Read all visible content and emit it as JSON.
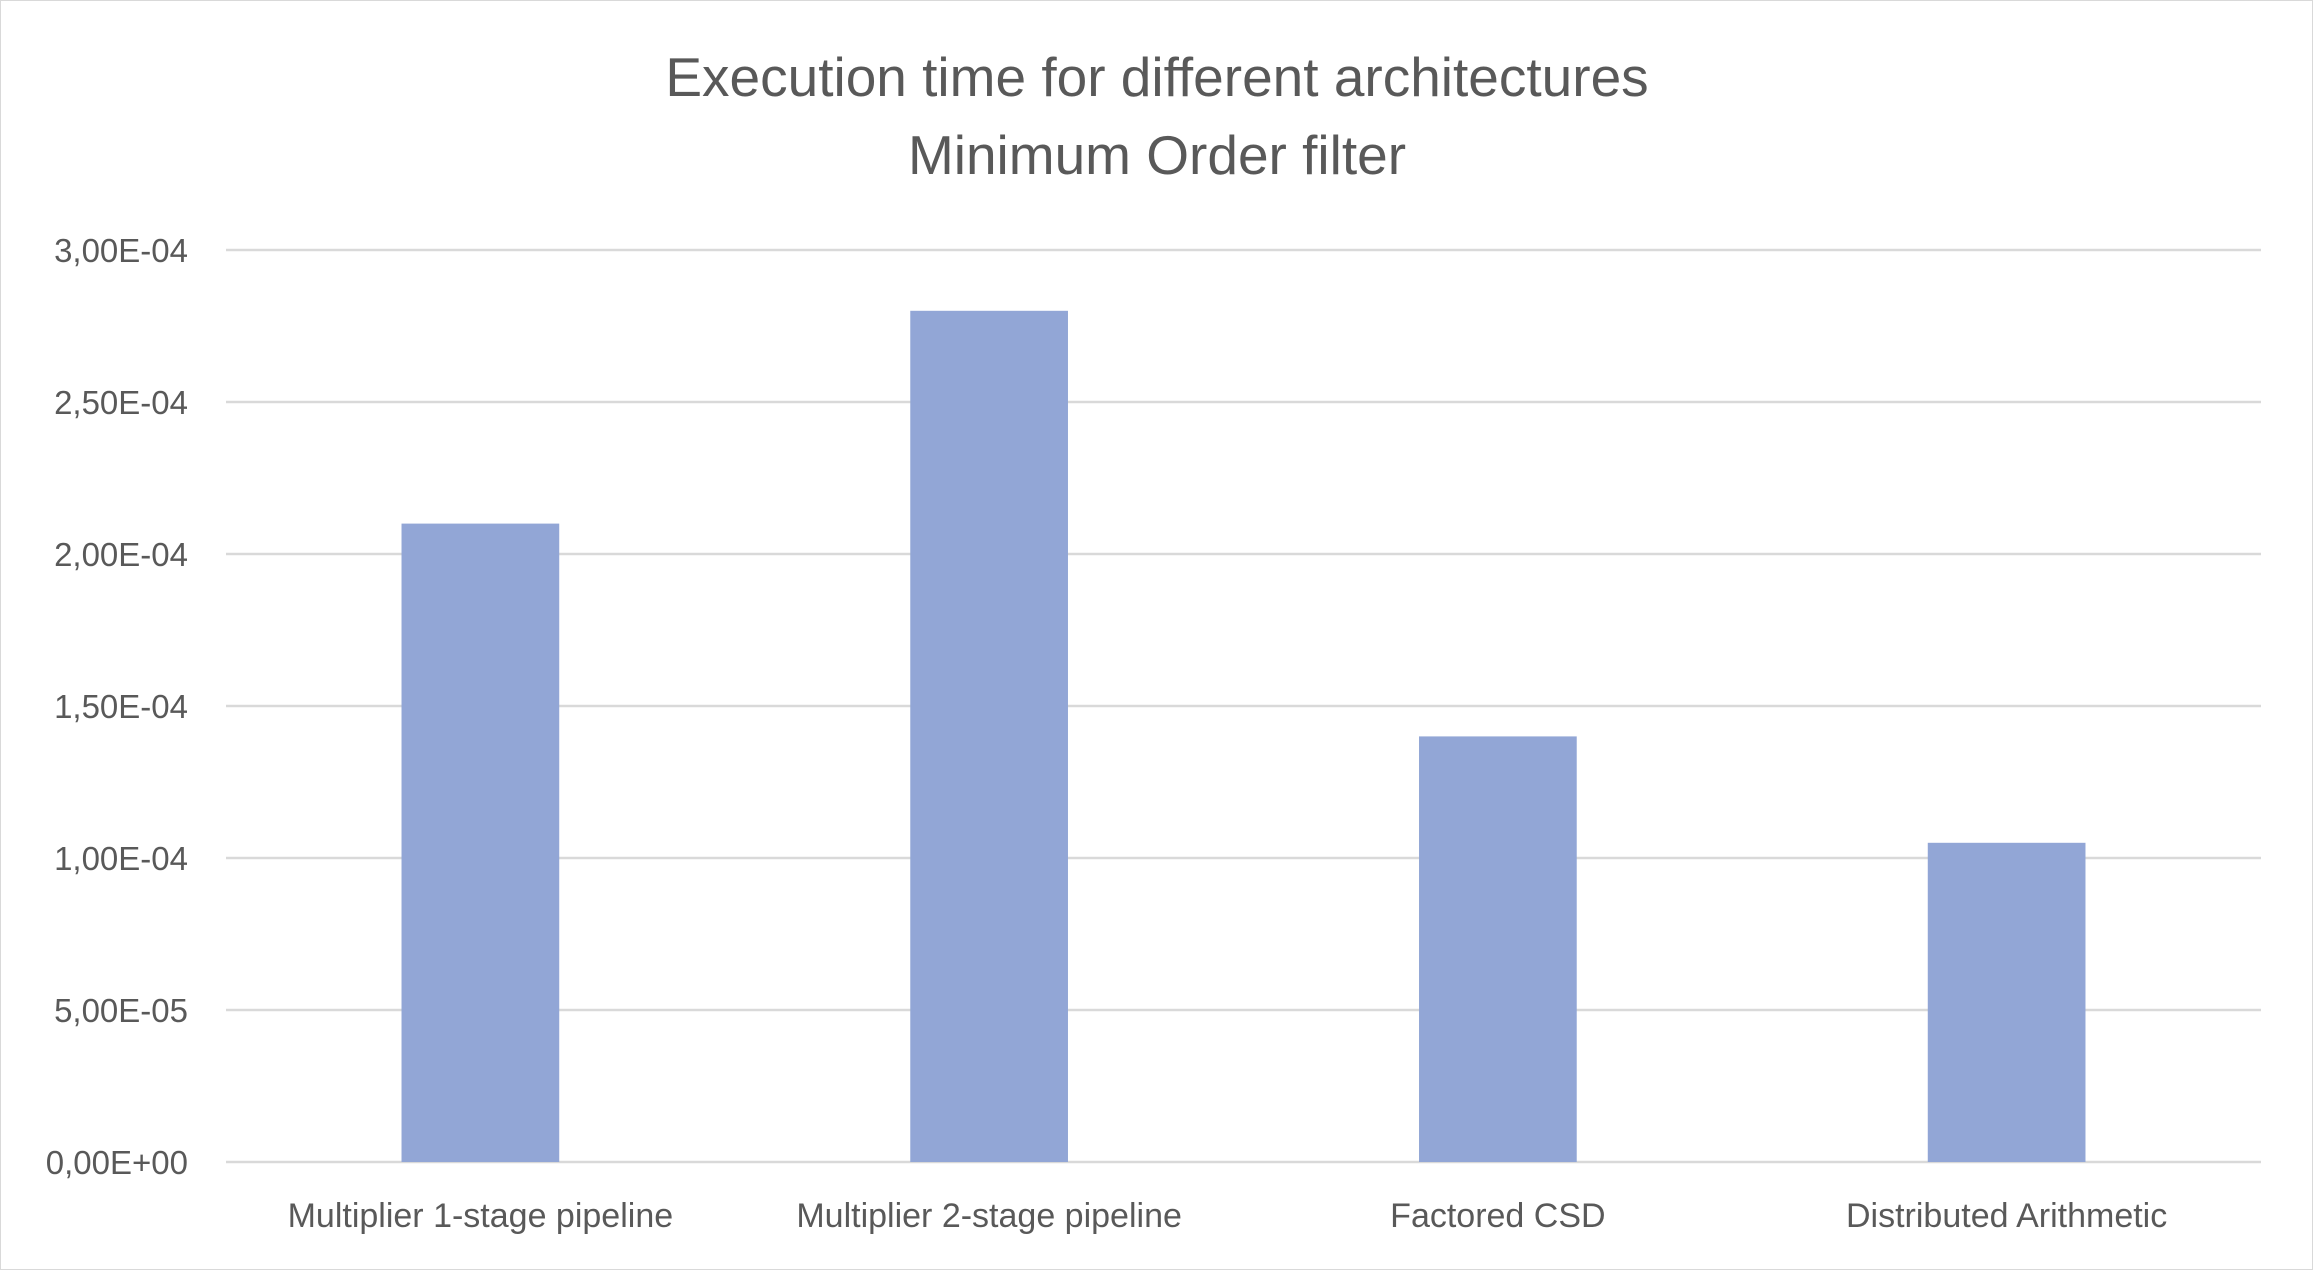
{
  "chart_data": {
    "type": "bar",
    "title": "Execution time for different architectures",
    "subtitle": "Minimum Order filter",
    "categories": [
      "Multiplier 1-stage pipeline",
      "Multiplier 2-stage pipeline",
      "Factored CSD",
      "Distributed Arithmetic"
    ],
    "values": [
      0.00021,
      0.00028,
      0.00014,
      0.000105
    ],
    "ylim": [
      0,
      0.0003
    ],
    "yticks": [
      0,
      5e-05,
      0.0001,
      0.00015,
      0.0002,
      0.00025,
      0.0003
    ],
    "ytick_labels": [
      "0,00E+00",
      "5,00E-05",
      "1,00E-04",
      "1,50E-04",
      "2,00E-04",
      "2,50E-04",
      "3,00E-04"
    ],
    "xlabel": "",
    "ylabel": "",
    "grid": true,
    "legend": "none",
    "bar_color": "#92a6d6"
  }
}
